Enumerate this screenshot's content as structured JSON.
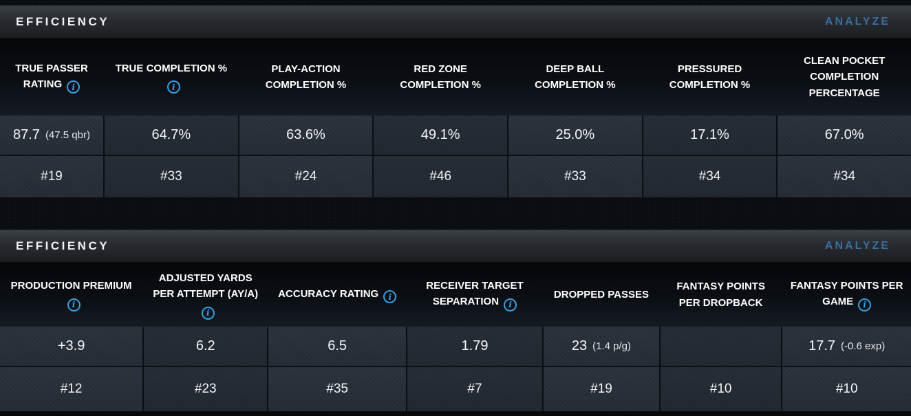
{
  "panels": [
    {
      "title": "EFFICIENCY",
      "action_label": "ANALYZE",
      "columns": [
        {
          "label": "TRUE PASSER RATING",
          "info_icon": true,
          "value": "87.7",
          "value_note": "(47.5 qbr)",
          "rank": "#19"
        },
        {
          "label": "TRUE COMPLETION %",
          "info_icon": true,
          "value": "64.7%",
          "value_note": "",
          "rank": "#33"
        },
        {
          "label": "PLAY-ACTION COMPLETION %",
          "info_icon": false,
          "value": "63.6%",
          "value_note": "",
          "rank": "#24"
        },
        {
          "label": "RED ZONE COMPLETION %",
          "info_icon": false,
          "value": "49.1%",
          "value_note": "",
          "rank": "#46"
        },
        {
          "label": "DEEP BALL COMPLETION %",
          "info_icon": false,
          "value": "25.0%",
          "value_note": "",
          "rank": "#33"
        },
        {
          "label": "PRESSURED COMPLETION %",
          "info_icon": false,
          "value": "17.1%",
          "value_note": "",
          "rank": "#34"
        },
        {
          "label": "CLEAN POCKET COMPLETION PERCENTAGE",
          "info_icon": false,
          "value": "67.0%",
          "value_note": "",
          "rank": "#34"
        }
      ]
    },
    {
      "title": "EFFICIENCY",
      "action_label": "ANALYZE",
      "columns": [
        {
          "label": "PRODUCTION PREMIUM",
          "info_icon": true,
          "value": "+3.9",
          "value_note": "",
          "rank": "#12"
        },
        {
          "label": "ADJUSTED YARDS PER ATTEMPT (AY/A)",
          "info_icon": true,
          "value": "6.2",
          "value_note": "",
          "rank": "#23"
        },
        {
          "label": "ACCURACY RATING",
          "info_icon": true,
          "value": "6.5",
          "value_note": "",
          "rank": "#35"
        },
        {
          "label": "RECEIVER TARGET SEPARATION",
          "info_icon": true,
          "value": "1.79",
          "value_note": "",
          "rank": "#7"
        },
        {
          "label": "DROPPED PASSES",
          "info_icon": false,
          "value": "23",
          "value_note": "(1.4 p/g)",
          "rank": "#19"
        },
        {
          "label": "FANTASY POINTS PER DROPBACK",
          "info_icon": false,
          "value": "",
          "value_note": "",
          "rank": "#10"
        },
        {
          "label": "FANTASY POINTS PER GAME",
          "info_icon": true,
          "value": "17.7",
          "value_note": "(-0.6 exp)",
          "rank": "#10"
        }
      ]
    }
  ],
  "colors": {
    "info_blue": "#38a0e4",
    "analyze_blue": "#3d6e9e"
  },
  "info_icon_glyph": "i"
}
